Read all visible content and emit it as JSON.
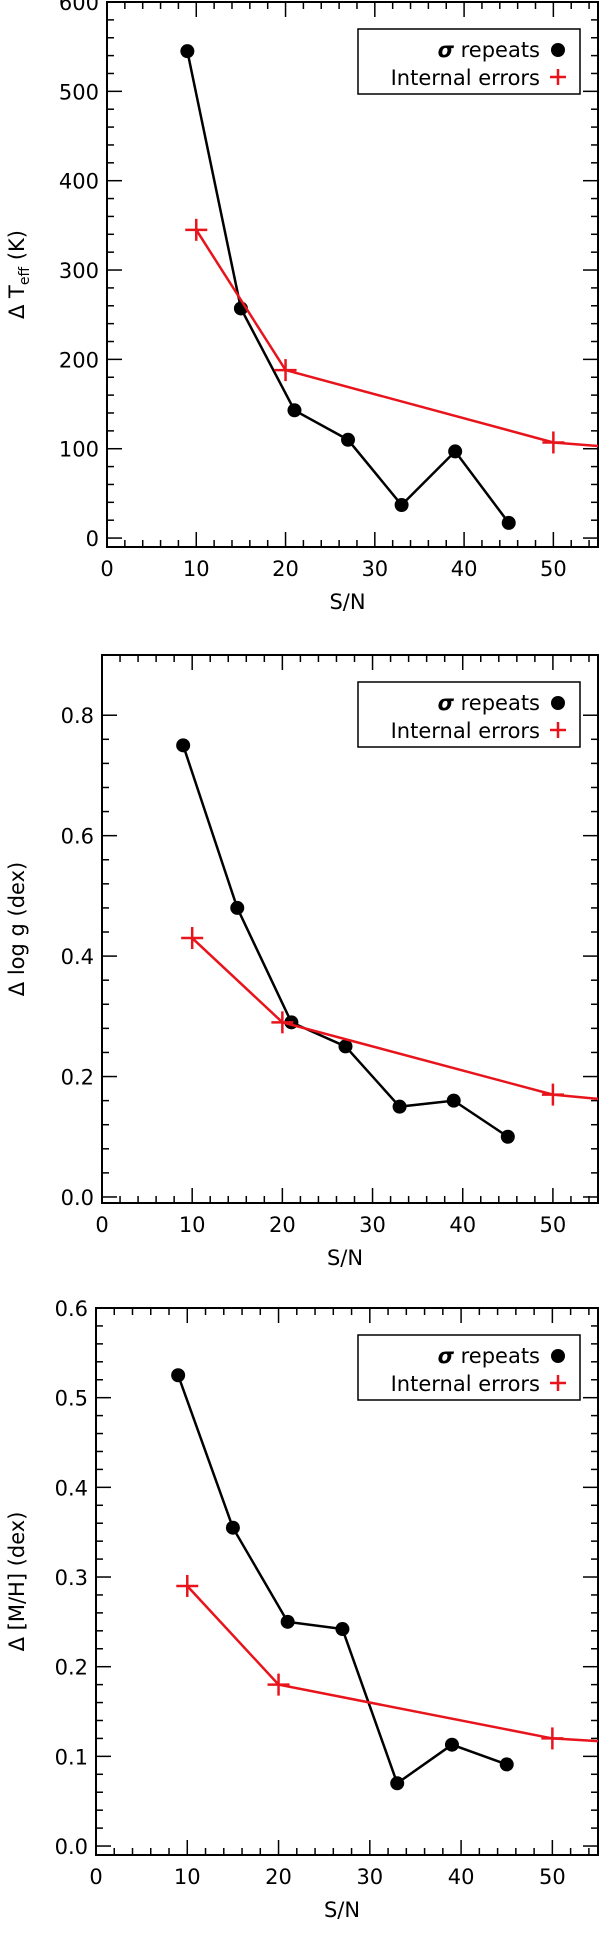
{
  "chart_data": [
    {
      "type": "line",
      "xlabel": "S/N",
      "ylabel_prefix": "Δ T",
      "ylabel_sub": "eff",
      "ylabel_suffix": " (K)",
      "xlim": [
        0,
        55
      ],
      "ylim": [
        -10,
        600
      ],
      "xticks": [
        0,
        10,
        20,
        30,
        40,
        50
      ],
      "yticks": [
        0,
        100,
        200,
        300,
        400,
        500,
        600
      ],
      "legend": {
        "position": "top-right",
        "sigma_symbol": "σ",
        "sigma_label": " repeats",
        "internal_label": "Internal errors"
      },
      "series": [
        {
          "name": "σ repeats",
          "color": "#000000",
          "marker": "circle",
          "x": [
            9,
            15,
            21,
            27,
            33,
            39,
            45
          ],
          "y": [
            545,
            257,
            143,
            110,
            37,
            97,
            17
          ]
        },
        {
          "name": "Internal errors",
          "color": "#e8141c",
          "marker": "plus",
          "x": [
            10,
            20,
            50,
            55
          ],
          "y": [
            345,
            188,
            107,
            103
          ]
        }
      ]
    },
    {
      "type": "line",
      "xlabel": "S/N",
      "ylabel_prefix": "Δ log g (dex)",
      "ylabel_sub": "",
      "ylabel_suffix": "",
      "xlim": [
        0,
        55
      ],
      "ylim": [
        -0.01,
        0.9
      ],
      "xticks": [
        0,
        10,
        20,
        30,
        40,
        50
      ],
      "yticks": [
        0.0,
        0.2,
        0.4,
        0.6,
        0.8
      ],
      "legend": {
        "position": "top-right",
        "sigma_symbol": "σ",
        "sigma_label": " repeats",
        "internal_label": "Internal errors"
      },
      "series": [
        {
          "name": "σ repeats",
          "color": "#000000",
          "marker": "circle",
          "x": [
            9,
            15,
            21,
            27,
            33,
            39,
            45
          ],
          "y": [
            0.75,
            0.48,
            0.29,
            0.25,
            0.15,
            0.16,
            0.1
          ]
        },
        {
          "name": "Internal errors",
          "color": "#e8141c",
          "marker": "plus",
          "x": [
            10,
            20,
            50,
            55
          ],
          "y": [
            0.43,
            0.29,
            0.17,
            0.163
          ]
        }
      ]
    },
    {
      "type": "line",
      "xlabel": "S/N",
      "ylabel_prefix": "Δ [M/H] (dex)",
      "ylabel_sub": "",
      "ylabel_suffix": "",
      "xlim": [
        0,
        55
      ],
      "ylim": [
        -0.01,
        0.6
      ],
      "xticks": [
        0,
        10,
        20,
        30,
        40,
        50
      ],
      "yticks": [
        0.0,
        0.1,
        0.2,
        0.3,
        0.4,
        0.5,
        0.6
      ],
      "legend": {
        "position": "top-right",
        "sigma_symbol": "σ",
        "sigma_label": " repeats",
        "internal_label": "Internal errors"
      },
      "series": [
        {
          "name": "σ repeats",
          "color": "#000000",
          "marker": "circle",
          "x": [
            9,
            15,
            21,
            27,
            33,
            39,
            45
          ],
          "y": [
            0.525,
            0.355,
            0.25,
            0.242,
            0.07,
            0.113,
            0.091
          ]
        },
        {
          "name": "Internal errors",
          "color": "#e8141c",
          "marker": "plus",
          "x": [
            10,
            20,
            50,
            55
          ],
          "y": [
            0.29,
            0.18,
            0.12,
            0.117
          ]
        }
      ]
    }
  ]
}
